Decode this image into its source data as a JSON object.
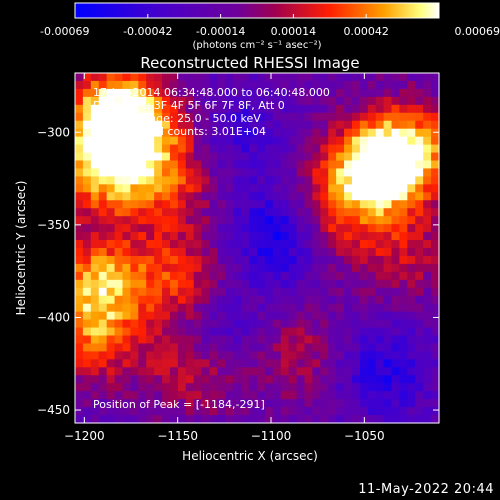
{
  "colorbar": {
    "ticks": [
      "-0.00069",
      "-0.00042",
      "-0.00014",
      "0.00014",
      "0.00042",
      "0.00069"
    ],
    "unit_label": "(photons cm⁻² s⁻¹ asec⁻²)"
  },
  "chart_data": {
    "type": "heatmap",
    "title": "Reconstructed RHESSI Image",
    "xlabel": "Heliocentric X (arcsec)",
    "ylabel": "Heliocentric Y (arcsec)",
    "xlim": [
      -1205,
      -1010
    ],
    "ylim": [
      -457,
      -268
    ],
    "xticks": [
      -1200,
      -1150,
      -1100,
      -1050
    ],
    "yticks": [
      -300,
      -350,
      -400,
      -450
    ],
    "xtick_labels": [
      "−1200",
      "−1150",
      "−1100",
      "−1050"
    ],
    "ytick_labels": [
      "−300",
      "−350",
      "−400",
      "−450"
    ],
    "colorscale": "blue-purple-red-yellow-white",
    "zlim": [
      -0.00069,
      0.00069
    ],
    "peak_position": [
      -1184,
      -291
    ],
    "annotations": [
      "17-Jan-2014 06:34:48.000 to 06:40:48.000",
      "Detectors: 3F 4F 5F 6F 7F 8F, Att 0",
      "Energy Range: 25.0 - 50.0 keV",
      "Clean    Total counts: 3.01E+04",
      "Position of Peak = [-1184,-291]"
    ],
    "bright_sources": [
      {
        "x": -1184,
        "y": -291,
        "amp": 1.0
      },
      {
        "x": -1190,
        "y": -320,
        "amp": 0.75
      },
      {
        "x": -1192,
        "y": -380,
        "amp": 0.7
      },
      {
        "x": -1195,
        "y": -410,
        "amp": 0.55
      },
      {
        "x": -1150,
        "y": -380,
        "amp": 0.5
      },
      {
        "x": -1155,
        "y": -330,
        "amp": 0.45
      },
      {
        "x": -1140,
        "y": -425,
        "amp": 0.55
      },
      {
        "x": -1045,
        "y": -320,
        "amp": 0.95
      },
      {
        "x": -1025,
        "y": -310,
        "amp": 0.7
      },
      {
        "x": -1070,
        "y": -345,
        "amp": 0.5
      },
      {
        "x": -1030,
        "y": -365,
        "amp": 0.35
      },
      {
        "x": -1085,
        "y": -420,
        "amp": 0.3
      },
      {
        "x": -1160,
        "y": -300,
        "amp": 0.4
      }
    ],
    "dim_regions": [
      {
        "x": -1095,
        "y": -355,
        "amp": -0.6
      },
      {
        "x": -1130,
        "y": -410,
        "amp": -0.45
      },
      {
        "x": -1120,
        "y": -300,
        "amp": -0.3
      },
      {
        "x": -1040,
        "y": -430,
        "amp": -0.4
      }
    ]
  },
  "footer": {
    "date": "11-May-2022 20:44"
  }
}
